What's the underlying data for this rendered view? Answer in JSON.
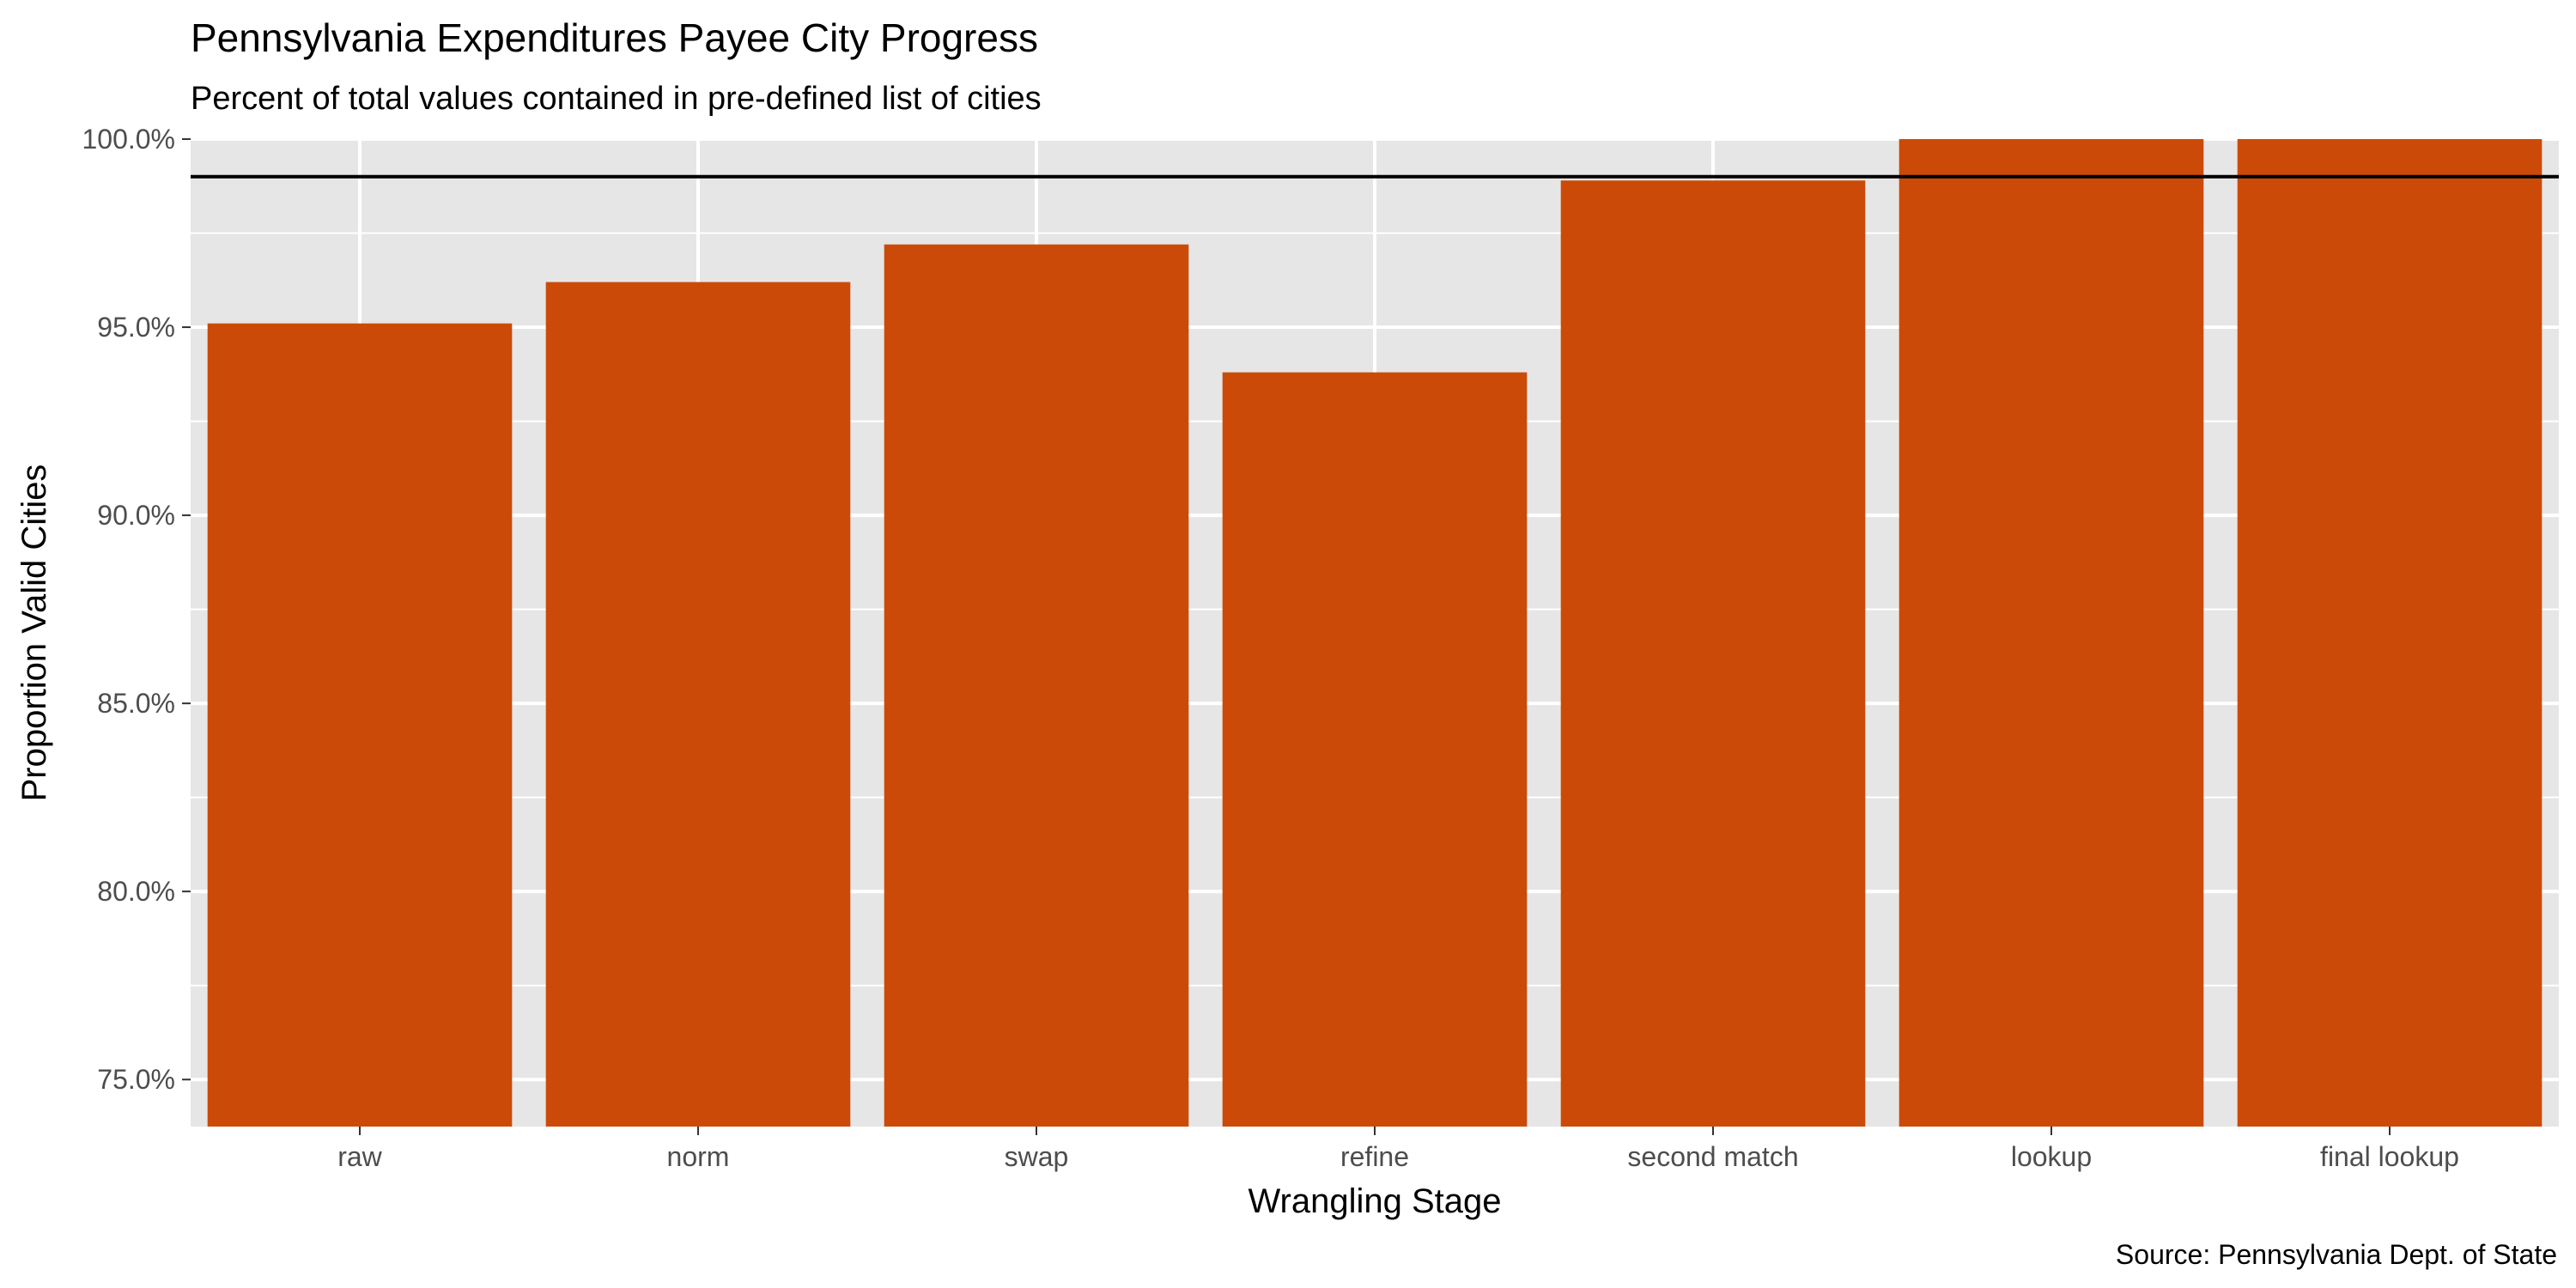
{
  "chart_data": {
    "type": "bar",
    "title": "Pennsylvania Expenditures Payee City Progress",
    "subtitle": "Percent of total values contained in pre-defined list of cities",
    "caption": "Source: Pennsylvania Dept. of State",
    "xlabel": "Wrangling Stage",
    "ylabel": "Proportion Valid Cities",
    "categories": [
      "raw",
      "norm",
      "swap",
      "refine",
      "second match",
      "lookup",
      "final lookup"
    ],
    "values": [
      0.951,
      0.962,
      0.972,
      0.938,
      0.989,
      1.0,
      1.0
    ],
    "ylim": [
      0.7375,
      1.0
    ],
    "yticks": [
      0.75,
      0.8,
      0.85,
      0.9,
      0.95,
      1.0
    ],
    "ytick_labels": [
      "75.0%",
      "80.0%",
      "85.0%",
      "90.0%",
      "95.0%",
      "100.0%"
    ],
    "reference_line": 0.99,
    "grid": true,
    "legend": "none",
    "colors": {
      "bar": "#CC4A08",
      "panel_background": "#E6E6E6",
      "grid": "#FFFFFF",
      "reference_line": "#000000"
    }
  }
}
